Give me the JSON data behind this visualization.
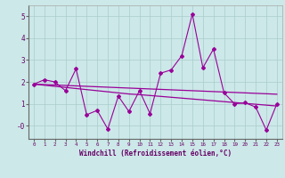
{
  "xlabel": "Windchill (Refroidissement éolien,°C)",
  "background_color": "#cce8e8",
  "grid_color": "#aacccc",
  "line_color": "#990099",
  "x_values": [
    0,
    1,
    2,
    3,
    4,
    5,
    6,
    7,
    8,
    9,
    10,
    11,
    12,
    13,
    14,
    15,
    16,
    17,
    18,
    19,
    20,
    21,
    22,
    23
  ],
  "y_main": [
    1.9,
    2.1,
    2.0,
    1.6,
    2.6,
    0.5,
    0.7,
    -0.15,
    1.35,
    0.65,
    1.6,
    0.55,
    2.4,
    2.55,
    3.2,
    5.1,
    2.65,
    3.5,
    1.5,
    1.0,
    1.05,
    0.85,
    -0.2,
    1.0
  ],
  "y_line1": [
    1.9,
    1.88,
    1.86,
    1.84,
    1.82,
    1.8,
    1.78,
    1.76,
    1.74,
    1.72,
    1.7,
    1.68,
    1.66,
    1.64,
    1.62,
    1.6,
    1.58,
    1.56,
    1.54,
    1.52,
    1.5,
    1.48,
    1.46,
    1.44
  ],
  "y_line2": [
    1.9,
    1.85,
    1.8,
    1.75,
    1.7,
    1.65,
    1.6,
    1.55,
    1.5,
    1.45,
    1.42,
    1.38,
    1.34,
    1.3,
    1.26,
    1.22,
    1.18,
    1.14,
    1.1,
    1.06,
    1.02,
    0.98,
    0.94,
    0.9
  ],
  "ylim": [
    -0.6,
    5.5
  ],
  "xlim": [
    -0.5,
    23.5
  ],
  "ytick_labels": [
    "-0",
    "1",
    "2",
    "3",
    "4",
    "5"
  ],
  "ytick_vals": [
    0,
    1,
    2,
    3,
    4,
    5
  ],
  "xtick_labels": [
    "0",
    "1",
    "2",
    "3",
    "4",
    "5",
    "6",
    "7",
    "8",
    "9",
    "10",
    "11",
    "12",
    "13",
    "14",
    "15",
    "16",
    "17",
    "18",
    "19",
    "20",
    "21",
    "22",
    "23"
  ]
}
